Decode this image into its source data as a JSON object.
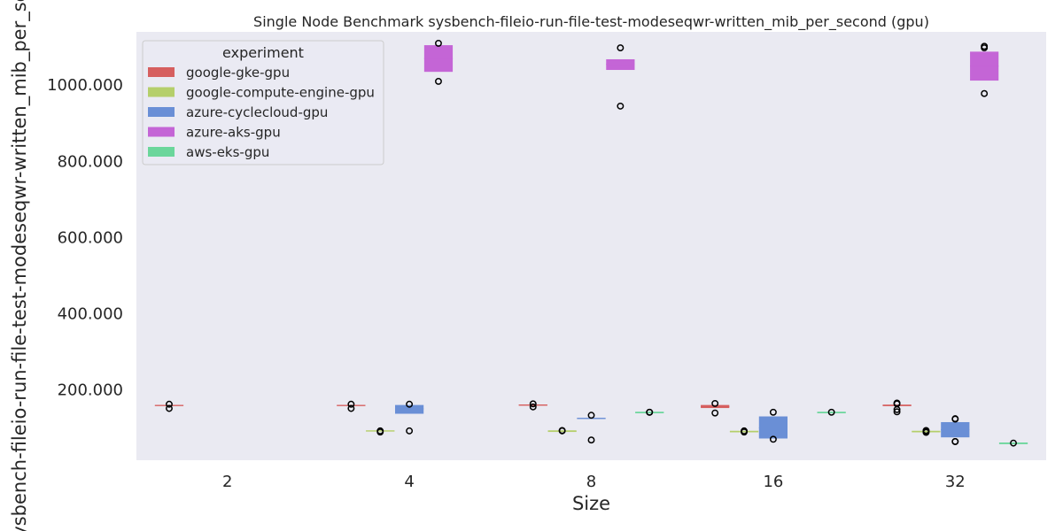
{
  "chart_data": {
    "type": "box",
    "title": "Single Node Benchmark sysbench-fileio-run-file-test-modeseqwr-written_mib_per_second (gpu)",
    "xlabel": "Size",
    "ylabel": "sysbench-fileio-run-file-test-modeseqwr-written_mib_per_second",
    "categories": [
      "2",
      "4",
      "8",
      "16",
      "32"
    ],
    "y_ticks": [
      200,
      400,
      600,
      800,
      1000
    ],
    "y_tick_labels": [
      "200.000",
      "400.000",
      "600.000",
      "800.000",
      "1000.000"
    ],
    "ylim": [
      15,
      1140
    ],
    "grid": false,
    "legend": {
      "title": "experiment",
      "position": "top-left"
    },
    "series": [
      {
        "name": "google-gke-gpu",
        "color": "#d65f5f",
        "boxes": [
          {
            "category": "2",
            "q1": 158,
            "median": 159,
            "q3": 160,
            "outliers": [
              151,
              162
            ]
          },
          {
            "category": "4",
            "q1": 158,
            "median": 159,
            "q3": 160,
            "outliers": [
              151,
              162
            ]
          },
          {
            "category": "8",
            "q1": 159,
            "median": 160,
            "q3": 161,
            "outliers": [
              155,
              163
            ]
          },
          {
            "category": "16",
            "q1": 152,
            "median": 156,
            "q3": 160,
            "outliers": [
              139,
              164
            ]
          },
          {
            "category": "32",
            "q1": 157,
            "median": 159,
            "q3": 161,
            "outliers": [
              142,
              148,
              163,
              165
            ]
          }
        ]
      },
      {
        "name": "google-compute-engine-gpu",
        "color": "#b5cf6b",
        "boxes": [
          {
            "category": "4",
            "q1": 91,
            "median": 92,
            "q3": 93,
            "outliers": [
              89,
              92
            ]
          },
          {
            "category": "8",
            "q1": 92,
            "median": 92,
            "q3": 92,
            "outliers": [
              92,
              93
            ]
          },
          {
            "category": "16",
            "q1": 91,
            "median": 91,
            "q3": 91,
            "outliers": [
              89,
              92
            ]
          },
          {
            "category": "32",
            "q1": 91,
            "median": 91,
            "q3": 91,
            "outliers": [
              88,
              91,
              93
            ]
          }
        ]
      },
      {
        "name": "azure-cyclecloud-gpu",
        "color": "#6a8fd6",
        "boxes": [
          {
            "category": "4",
            "q1": 137,
            "median": 150,
            "q3": 160,
            "outliers": [
              92,
              162
            ]
          },
          {
            "category": "8",
            "q1": 125,
            "median": 125,
            "q3": 126,
            "outliers": [
              68,
              133
            ]
          },
          {
            "category": "16",
            "q1": 72,
            "median": 100,
            "q3": 130,
            "outliers": [
              70,
              141
            ]
          },
          {
            "category": "32",
            "q1": 75,
            "median": 95,
            "q3": 115,
            "outliers": [
              64,
              64,
              123,
              124
            ]
          }
        ]
      },
      {
        "name": "azure-aks-gpu",
        "color": "#c465d6",
        "boxes": [
          {
            "category": "4",
            "q1": 1035,
            "median": 1070,
            "q3": 1105,
            "outliers": [
              1010,
              1110
            ]
          },
          {
            "category": "8",
            "q1": 1040,
            "median": 1055,
            "q3": 1068,
            "outliers": [
              945,
              1098
            ]
          },
          {
            "category": "32",
            "q1": 1012,
            "median": 1050,
            "q3": 1088,
            "outliers": [
              978,
              1098,
              1102
            ]
          }
        ]
      },
      {
        "name": "aws-eks-gpu",
        "color": "#6bd69b",
        "boxes": [
          {
            "category": "8",
            "q1": 141,
            "median": 141,
            "q3": 141,
            "outliers": [
              141,
              141
            ]
          },
          {
            "category": "16",
            "q1": 141,
            "median": 141,
            "q3": 141,
            "outliers": [
              141
            ]
          },
          {
            "category": "32",
            "q1": 60,
            "median": 60,
            "q3": 60,
            "outliers": [
              60
            ]
          }
        ]
      }
    ]
  }
}
